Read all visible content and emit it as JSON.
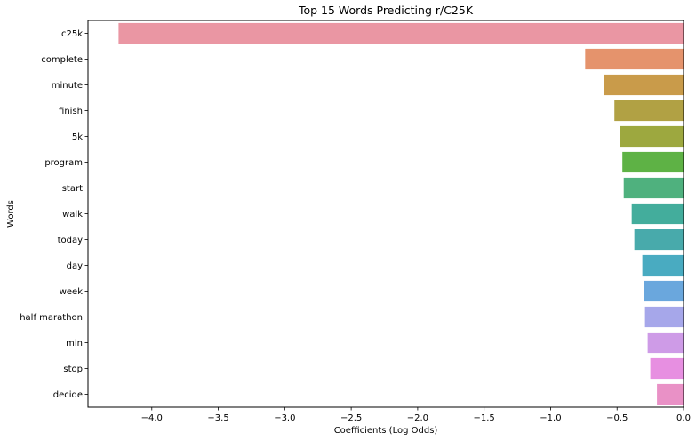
{
  "chart_data": {
    "type": "bar",
    "orientation": "horizontal",
    "title": "Top 15 Words Predicting r/C25K",
    "xlabel": "Coefficients (Log Odds)",
    "ylabel": "Words",
    "xlim": [
      -4.48,
      0.0
    ],
    "xticks": [
      -4.0,
      -3.5,
      -3.0,
      -2.5,
      -2.0,
      -1.5,
      -1.0,
      -0.5,
      0.0
    ],
    "xtick_labels": [
      "−4.0",
      "−3.5",
      "−3.0",
      "−2.5",
      "−2.0",
      "−1.5",
      "−1.0",
      "−0.5",
      "0.0"
    ],
    "grid": false,
    "categories": [
      "c25k",
      "complete",
      "minute",
      "finish",
      "5k",
      "program",
      "start",
      "walk",
      "today",
      "day",
      "week",
      "half marathon",
      "min",
      "stop",
      "decide"
    ],
    "values": [
      -4.25,
      -0.74,
      -0.6,
      -0.52,
      -0.48,
      -0.46,
      -0.45,
      -0.39,
      -0.37,
      -0.31,
      -0.3,
      -0.29,
      -0.27,
      -0.25,
      -0.2
    ],
    "colors": [
      "#ea96a3",
      "#e5936c",
      "#c99b4a",
      "#b1a144",
      "#9da83f",
      "#5eb245",
      "#4fb17e",
      "#43ad9c",
      "#48aaab",
      "#49abc1",
      "#6aa7dd",
      "#a6a7ea",
      "#ce9be7",
      "#e78fe1",
      "#e991c6"
    ]
  }
}
